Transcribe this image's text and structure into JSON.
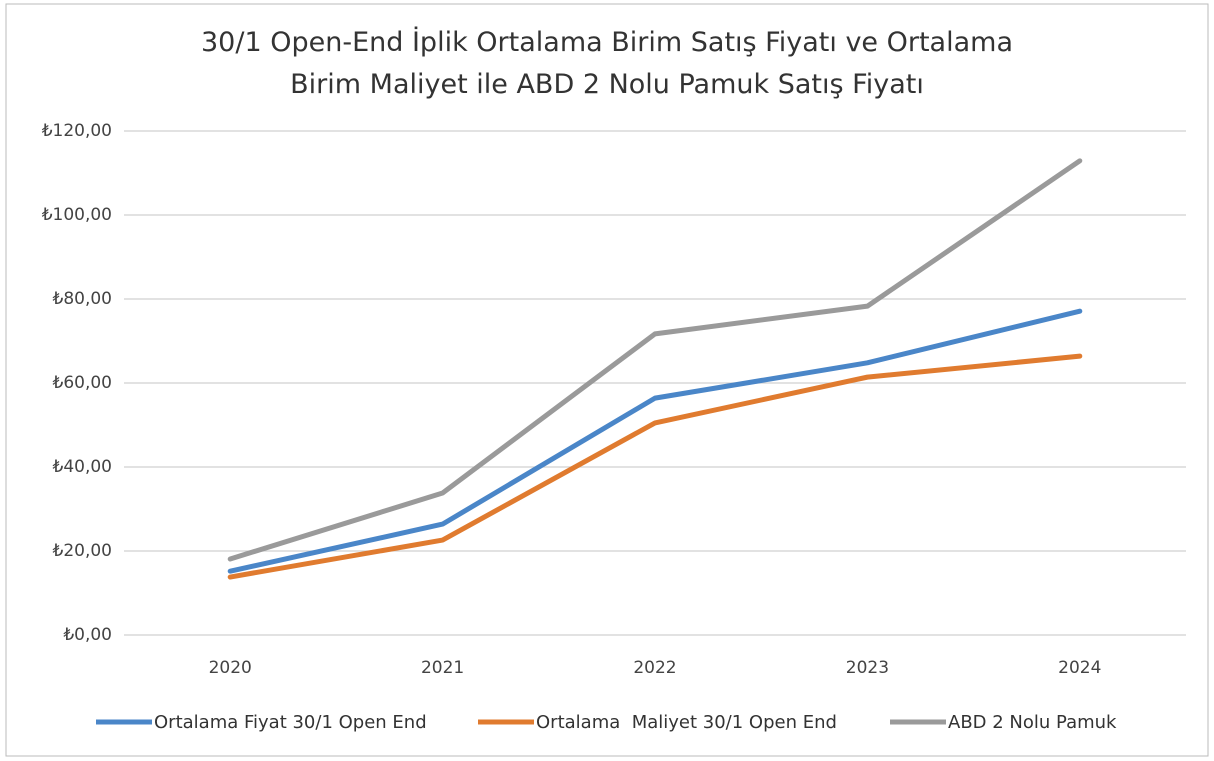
{
  "chart_data": {
    "type": "line",
    "title": "30/1 Open-End İplik Ortalama Birim Satış Fiyatı ve Ortalama Birim Maliyet ile ABD 2 Nolu Pamuk Satış Fiyatı",
    "categories": [
      "2020",
      "2021",
      "2022",
      "2023",
      "2024"
    ],
    "series": [
      {
        "name": "Ortalama Fiyat 30/1 Open End",
        "color": "#4a86c8",
        "values": [
          15.2,
          26.4,
          56.4,
          64.8,
          77.1
        ]
      },
      {
        "name": "Ortalama  Maliyet 30/1 Open End",
        "color": "#e07b2f",
        "values": [
          13.8,
          22.6,
          50.5,
          61.4,
          66.4
        ]
      },
      {
        "name": "ABD 2 Nolu Pamuk",
        "color": "#9a9a9a",
        "values": [
          18.1,
          33.8,
          71.7,
          78.3,
          112.9
        ]
      }
    ],
    "ylim": [
      0,
      120
    ],
    "yticks": [
      {
        "value": 0,
        "label": "₺0,00"
      },
      {
        "value": 20,
        "label": "₺20,00"
      },
      {
        "value": 40,
        "label": "₺40,00"
      },
      {
        "value": 60,
        "label": "₺60,00"
      },
      {
        "value": 80,
        "label": "₺80,00"
      },
      {
        "value": 100,
        "label": "₺100,00"
      },
      {
        "value": 120,
        "label": "₺120,00"
      }
    ],
    "grid": true,
    "legend": "bottom"
  }
}
